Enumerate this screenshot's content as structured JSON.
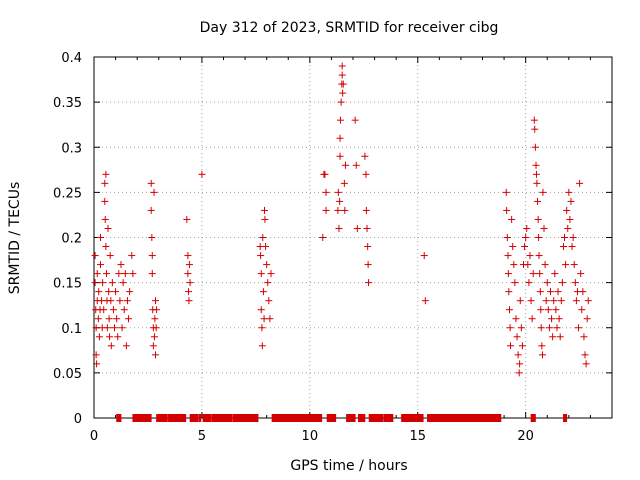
{
  "chart_data": {
    "type": "scatter",
    "title": "Day 312 of 2023, SRMTID for receiver cibg",
    "xlabel": "GPS time / hours",
    "ylabel": "SRMTID / TECUs",
    "xlim": [
      0,
      24
    ],
    "ylim": [
      0,
      0.4
    ],
    "x_ticks": [
      0,
      5,
      10,
      15,
      20
    ],
    "x_tick_labels": [
      "0",
      "5",
      "10",
      "15",
      "20"
    ],
    "y_ticks": [
      0,
      0.05,
      0.1,
      0.15,
      0.2,
      0.25,
      0.3,
      0.35,
      0.4
    ],
    "y_tick_labels": [
      "0",
      "0.05",
      "0.1",
      "0.15",
      "0.2",
      "0.25",
      "0.3",
      "0.35",
      "0.4"
    ],
    "grid": true,
    "marker": "+",
    "color": "#d40000",
    "series": [
      {
        "name": "SRMTID",
        "points": [
          [
            0.05,
            0.18
          ],
          [
            0.05,
            0.15
          ],
          [
            0.08,
            0.12
          ],
          [
            0.1,
            0.1
          ],
          [
            0.1,
            0.07
          ],
          [
            0.12,
            0.06
          ],
          [
            0.15,
            0.13
          ],
          [
            0.15,
            0.16
          ],
          [
            0.2,
            0.11
          ],
          [
            0.22,
            0.14
          ],
          [
            0.25,
            0.09
          ],
          [
            0.28,
            0.12
          ],
          [
            0.3,
            0.17
          ],
          [
            0.3,
            0.2
          ],
          [
            0.35,
            0.13
          ],
          [
            0.38,
            0.1
          ],
          [
            0.4,
            0.15
          ],
          [
            0.45,
            0.12
          ],
          [
            0.5,
            0.26
          ],
          [
            0.5,
            0.24
          ],
          [
            0.52,
            0.22
          ],
          [
            0.55,
            0.27
          ],
          [
            0.55,
            0.19
          ],
          [
            0.58,
            0.16
          ],
          [
            0.6,
            0.13
          ],
          [
            0.62,
            0.1
          ],
          [
            0.65,
            0.21
          ],
          [
            0.68,
            0.14
          ],
          [
            0.7,
            0.11
          ],
          [
            0.72,
            0.09
          ],
          [
            0.75,
            0.18
          ],
          [
            0.78,
            0.13
          ],
          [
            0.8,
            0.08
          ],
          [
            0.85,
            0.15
          ],
          [
            0.9,
            0.12
          ],
          [
            0.95,
            0.1
          ],
          [
            1.0,
            0.14
          ],
          [
            1.05,
            0.11
          ],
          [
            1.1,
            0.09
          ],
          [
            1.15,
            0.16
          ],
          [
            1.2,
            0.13
          ],
          [
            1.25,
            0.17
          ],
          [
            1.3,
            0.1
          ],
          [
            1.35,
            0.15
          ],
          [
            1.4,
            0.12
          ],
          [
            1.45,
            0.16
          ],
          [
            1.5,
            0.08
          ],
          [
            1.55,
            0.13
          ],
          [
            1.6,
            0.11
          ],
          [
            1.65,
            0.14
          ],
          [
            1.75,
            0.18
          ],
          [
            1.8,
            0.16
          ],
          [
            2.65,
            0.26
          ],
          [
            2.65,
            0.23
          ],
          [
            2.68,
            0.2
          ],
          [
            2.7,
            0.18
          ],
          [
            2.7,
            0.16
          ],
          [
            2.72,
            0.12
          ],
          [
            2.75,
            0.1
          ],
          [
            2.75,
            0.08
          ],
          [
            2.78,
            0.25
          ],
          [
            2.8,
            0.09
          ],
          [
            2.82,
            0.11
          ],
          [
            2.85,
            0.07
          ],
          [
            2.85,
            0.13
          ],
          [
            2.88,
            0.1
          ],
          [
            2.9,
            0.12
          ],
          [
            4.3,
            0.22
          ],
          [
            4.35,
            0.18
          ],
          [
            4.35,
            0.16
          ],
          [
            4.38,
            0.14
          ],
          [
            4.4,
            0.13
          ],
          [
            4.42,
            0.17
          ],
          [
            4.45,
            0.15
          ],
          [
            5.0,
            0.27
          ],
          [
            7.7,
            0.19
          ],
          [
            7.72,
            0.18
          ],
          [
            7.75,
            0.16
          ],
          [
            7.75,
            0.12
          ],
          [
            7.78,
            0.1
          ],
          [
            7.8,
            0.08
          ],
          [
            7.82,
            0.2
          ],
          [
            7.85,
            0.14
          ],
          [
            7.88,
            0.11
          ],
          [
            7.9,
            0.23
          ],
          [
            7.92,
            0.22
          ],
          [
            7.95,
            0.19
          ],
          [
            8.0,
            0.17
          ],
          [
            8.05,
            0.15
          ],
          [
            8.1,
            0.13
          ],
          [
            8.15,
            0.11
          ],
          [
            8.2,
            0.16
          ],
          [
            10.6,
            0.2
          ],
          [
            10.65,
            0.27
          ],
          [
            10.7,
            0.27
          ],
          [
            10.75,
            0.25
          ],
          [
            10.75,
            0.23
          ],
          [
            11.3,
            0.23
          ],
          [
            11.32,
            0.25
          ],
          [
            11.35,
            0.21
          ],
          [
            11.38,
            0.24
          ],
          [
            11.4,
            0.29
          ],
          [
            11.4,
            0.31
          ],
          [
            11.42,
            0.33
          ],
          [
            11.45,
            0.35
          ],
          [
            11.48,
            0.37
          ],
          [
            11.5,
            0.38
          ],
          [
            11.5,
            0.39
          ],
          [
            11.52,
            0.36
          ],
          [
            11.55,
            0.37
          ],
          [
            11.6,
            0.26
          ],
          [
            11.62,
            0.23
          ],
          [
            11.65,
            0.28
          ],
          [
            12.1,
            0.33
          ],
          [
            12.15,
            0.28
          ],
          [
            12.2,
            0.21
          ],
          [
            12.55,
            0.29
          ],
          [
            12.6,
            0.27
          ],
          [
            12.62,
            0.23
          ],
          [
            12.65,
            0.21
          ],
          [
            12.68,
            0.19
          ],
          [
            12.7,
            0.17
          ],
          [
            12.72,
            0.15
          ],
          [
            15.3,
            0.18
          ],
          [
            15.35,
            0.13
          ],
          [
            19.1,
            0.25
          ],
          [
            19.12,
            0.23
          ],
          [
            19.15,
            0.2
          ],
          [
            19.18,
            0.18
          ],
          [
            19.2,
            0.16
          ],
          [
            19.22,
            0.14
          ],
          [
            19.25,
            0.12
          ],
          [
            19.28,
            0.1
          ],
          [
            19.3,
            0.08
          ],
          [
            19.35,
            0.22
          ],
          [
            19.4,
            0.19
          ],
          [
            19.45,
            0.17
          ],
          [
            19.5,
            0.15
          ],
          [
            19.55,
            0.11
          ],
          [
            19.6,
            0.09
          ],
          [
            19.65,
            0.07
          ],
          [
            19.7,
            0.05
          ],
          [
            19.72,
            0.06
          ],
          [
            19.75,
            0.13
          ],
          [
            19.8,
            0.1
          ],
          [
            19.85,
            0.08
          ],
          [
            19.9,
            0.17
          ],
          [
            19.95,
            0.19
          ],
          [
            20.0,
            0.2
          ],
          [
            20.05,
            0.21
          ],
          [
            20.1,
            0.17
          ],
          [
            20.15,
            0.15
          ],
          [
            20.2,
            0.18
          ],
          [
            20.25,
            0.13
          ],
          [
            20.3,
            0.11
          ],
          [
            20.35,
            0.16
          ],
          [
            20.4,
            0.33
          ],
          [
            20.42,
            0.32
          ],
          [
            20.45,
            0.3
          ],
          [
            20.48,
            0.28
          ],
          [
            20.5,
            0.27
          ],
          [
            20.52,
            0.26
          ],
          [
            20.55,
            0.24
          ],
          [
            20.58,
            0.22
          ],
          [
            20.6,
            0.2
          ],
          [
            20.62,
            0.18
          ],
          [
            20.65,
            0.16
          ],
          [
            20.68,
            0.14
          ],
          [
            20.7,
            0.12
          ],
          [
            20.72,
            0.1
          ],
          [
            20.75,
            0.08
          ],
          [
            20.78,
            0.07
          ],
          [
            20.8,
            0.25
          ],
          [
            20.85,
            0.21
          ],
          [
            20.9,
            0.17
          ],
          [
            20.95,
            0.13
          ],
          [
            21.0,
            0.15
          ],
          [
            21.05,
            0.12
          ],
          [
            21.1,
            0.1
          ],
          [
            21.15,
            0.14
          ],
          [
            21.2,
            0.11
          ],
          [
            21.25,
            0.09
          ],
          [
            21.3,
            0.13
          ],
          [
            21.35,
            0.16
          ],
          [
            21.4,
            0.12
          ],
          [
            21.45,
            0.1
          ],
          [
            21.5,
            0.14
          ],
          [
            21.55,
            0.11
          ],
          [
            21.6,
            0.09
          ],
          [
            21.65,
            0.13
          ],
          [
            21.7,
            0.15
          ],
          [
            21.75,
            0.19
          ],
          [
            21.8,
            0.2
          ],
          [
            21.85,
            0.17
          ],
          [
            21.9,
            0.23
          ],
          [
            21.95,
            0.21
          ],
          [
            22.0,
            0.25
          ],
          [
            22.05,
            0.22
          ],
          [
            22.1,
            0.24
          ],
          [
            22.15,
            0.19
          ],
          [
            22.2,
            0.2
          ],
          [
            22.25,
            0.17
          ],
          [
            22.3,
            0.15
          ],
          [
            22.35,
            0.13
          ],
          [
            22.4,
            0.14
          ],
          [
            22.45,
            0.1
          ],
          [
            22.5,
            0.26
          ],
          [
            22.55,
            0.16
          ],
          [
            22.6,
            0.12
          ],
          [
            22.65,
            0.14
          ],
          [
            22.7,
            0.09
          ],
          [
            22.75,
            0.07
          ],
          [
            22.8,
            0.06
          ],
          [
            22.85,
            0.11
          ],
          [
            22.9,
            0.13
          ]
        ],
        "zero_points": [
          1.1,
          1.15,
          1.2,
          1.85,
          1.9,
          1.95,
          2.0,
          2.05,
          2.1,
          2.15,
          2.2,
          2.25,
          2.3,
          2.35,
          2.4,
          2.5,
          2.55,
          2.6,
          2.95,
          3.0,
          3.1,
          3.15,
          3.25,
          3.3,
          3.35,
          3.5,
          3.55,
          3.6,
          3.7,
          3.8,
          3.85,
          3.95,
          4.0,
          4.1,
          4.2,
          4.5,
          4.55,
          4.6,
          4.7,
          4.75,
          4.9,
          5.1,
          5.2,
          5.3,
          5.35,
          5.5,
          5.6,
          5.7,
          5.75,
          5.85,
          5.9,
          6.0,
          6.1,
          6.2,
          6.25,
          6.35,
          6.5,
          6.6,
          6.7,
          6.75,
          6.85,
          6.95,
          7.05,
          7.1,
          7.2,
          7.3,
          7.4,
          7.45,
          7.55,
          8.3,
          8.35,
          8.45,
          8.55,
          8.65,
          8.7,
          8.8,
          8.9,
          9.0,
          9.05,
          9.1,
          9.2,
          9.3,
          9.35,
          9.45,
          9.5,
          9.6,
          9.7,
          9.8,
          9.9,
          10.0,
          10.05,
          10.1,
          10.2,
          10.3,
          10.4,
          10.5,
          10.85,
          10.95,
          11.05,
          11.15,
          11.75,
          11.85,
          11.95,
          12.05,
          12.3,
          12.4,
          12.5,
          12.8,
          12.9,
          13.0,
          13.05,
          13.15,
          13.25,
          13.35,
          13.5,
          13.6,
          13.7,
          13.8,
          14.3,
          14.4,
          14.5,
          14.6,
          14.7,
          14.8,
          14.9,
          15.0,
          15.1,
          15.2,
          15.5,
          15.6,
          15.7,
          15.8,
          15.9,
          16.0,
          16.05,
          16.1,
          16.2,
          16.3,
          16.4,
          16.5,
          16.6,
          16.7,
          16.8,
          16.9,
          17.0,
          17.1,
          17.2,
          17.3,
          17.4,
          17.5,
          17.6,
          17.7,
          17.8,
          17.9,
          18.0,
          18.1,
          18.2,
          18.3,
          18.4,
          18.5,
          18.6,
          18.7,
          18.8,
          20.3,
          20.35,
          20.4,
          21.8,
          21.85
        ]
      }
    ]
  }
}
